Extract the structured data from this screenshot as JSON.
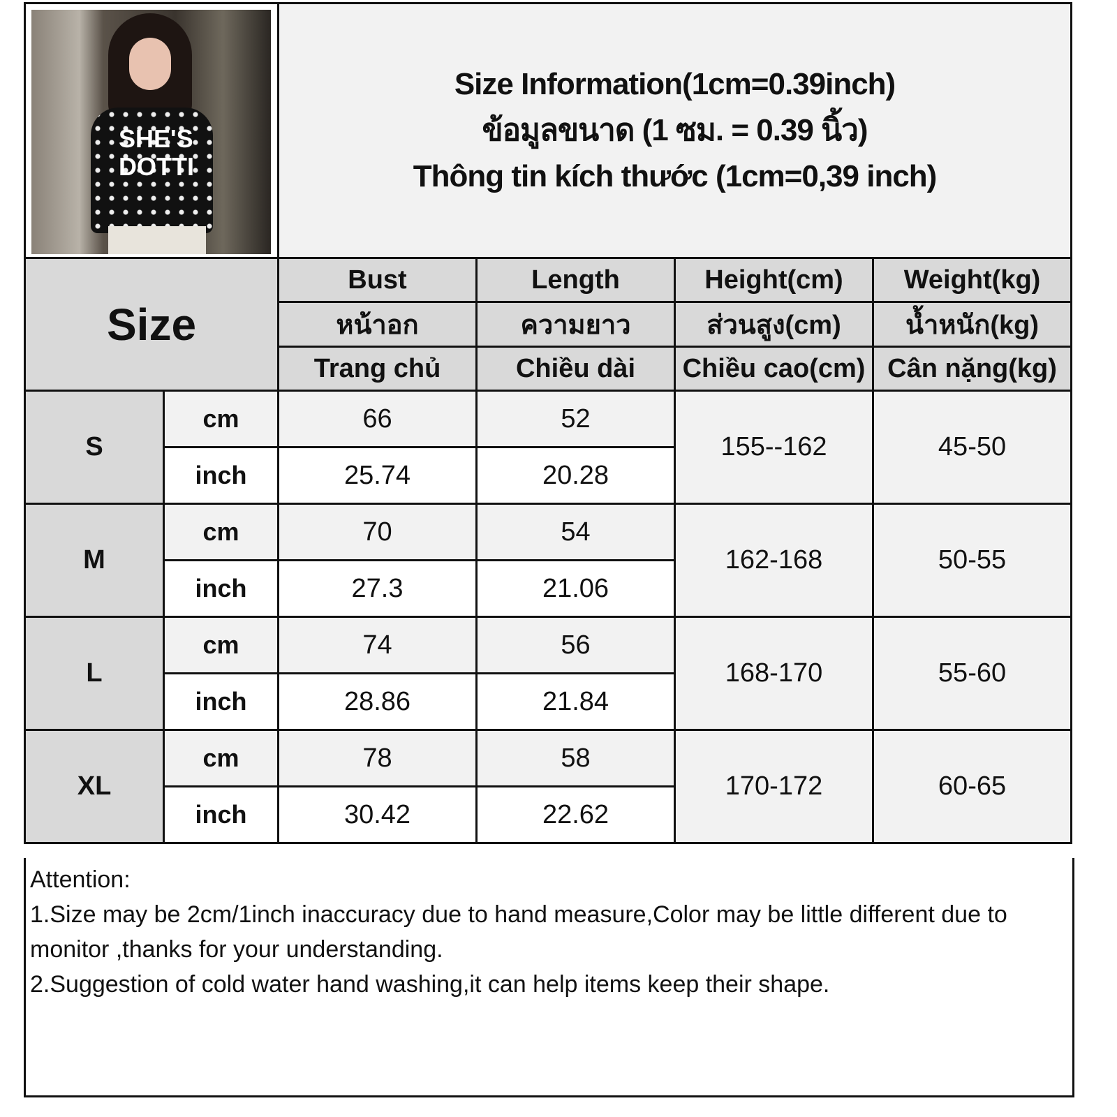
{
  "title": {
    "line_en": "Size Information(1cm=0.39inch)",
    "line_th": "ข้อมูลขนาด (1 ซม. = 0.39 นิ้ว)",
    "line_vi": "Thông tin kích thước (1cm=0,39 inch)"
  },
  "photo": {
    "shirt_text_1": "SHE'S",
    "shirt_text_2": "DOTTI"
  },
  "header": {
    "size_label": "Size",
    "columns": [
      {
        "en": "Bust",
        "th": "หน้าอก",
        "vi": "Trang chủ"
      },
      {
        "en": "Length",
        "th": "ความยาว",
        "vi": "Chiều dài"
      },
      {
        "en": "Height(cm)",
        "th": "ส่วนสูง(cm)",
        "vi": "Chiều cao(cm)"
      },
      {
        "en": "Weight(kg)",
        "th": "น้ำหนัก(kg)",
        "vi": "Cân nặng(kg)"
      }
    ]
  },
  "units": {
    "cm": "cm",
    "inch": "inch"
  },
  "rows": [
    {
      "size": "S",
      "bust_cm": "66",
      "bust_inch": "25.74",
      "length_cm": "52",
      "length_inch": "20.28",
      "height": "155--162",
      "weight": "45-50"
    },
    {
      "size": "M",
      "bust_cm": "70",
      "bust_inch": "27.3",
      "length_cm": "54",
      "length_inch": "21.06",
      "height": "162-168",
      "weight": "50-55"
    },
    {
      "size": "L",
      "bust_cm": "74",
      "bust_inch": "28.86",
      "length_cm": "56",
      "length_inch": "21.84",
      "height": "168-170",
      "weight": "55-60"
    },
    {
      "size": "XL",
      "bust_cm": "78",
      "bust_inch": "30.42",
      "length_cm": "58",
      "length_inch": "22.62",
      "height": "170-172",
      "weight": "60-65"
    }
  ],
  "attention": {
    "heading": "Attention:",
    "note1": "1.Size may be 2cm/1inch inaccuracy due to hand measure,Color may be little different due to monitor ,thanks for your understanding.",
    "note2": "2.Suggestion of cold water hand washing,it can help items keep their shape."
  },
  "colors": {
    "header_bg": "#d9d9d9",
    "cm_row_bg": "#f2f2f2",
    "inch_row_bg": "#ffffff",
    "border": "#111111"
  }
}
